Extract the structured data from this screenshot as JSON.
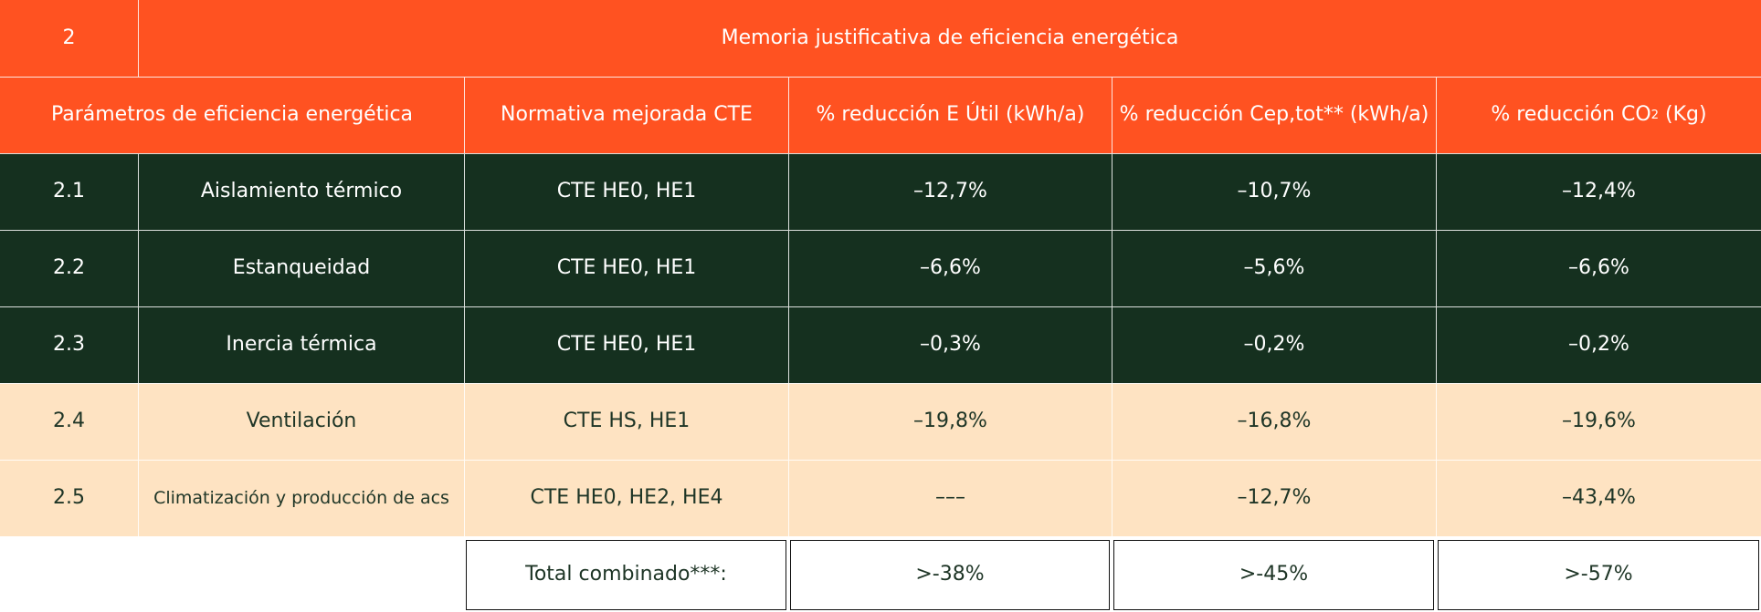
{
  "section": {
    "number": "2",
    "title": "Memoria justificativa de eficiencia energética"
  },
  "headers": {
    "parametros": "Parámetros de eficiencia energética",
    "normativa": "Normativa mejorada CTE",
    "util": "% reducción E Útil (kWh/a)",
    "cep": "% reducción Cep,tot** (kWh/a)",
    "co2_prefix": "% reducción CO",
    "co2_sub": "2",
    "co2_suffix": " (Kg)"
  },
  "rows": [
    {
      "id": "2.1",
      "name": "Aislamiento térmico",
      "normativa": "CTE HE0, HE1",
      "util": "–12,7%",
      "cep": "–10,7%",
      "co2": "–12,4%"
    },
    {
      "id": "2.2",
      "name": "Estanqueidad",
      "normativa": "CTE HE0, HE1",
      "util": "–6,6%",
      "cep": "–5,6%",
      "co2": "–6,6%"
    },
    {
      "id": "2.3",
      "name": "Inercia térmica",
      "normativa": "CTE HE0, HE1",
      "util": "–0,3%",
      "cep": "–0,2%",
      "co2": "–0,2%"
    },
    {
      "id": "2.4",
      "name": "Ventilación",
      "normativa": "CTE HS, HE1",
      "util": "–19,8%",
      "cep": "–16,8%",
      "co2": "–19,6%"
    },
    {
      "id": "2.5",
      "name": "Climatización y producción de acs",
      "normativa": "CTE HE0, HE2, HE4",
      "util": "–––",
      "cep": "–12,7%",
      "co2": "–43,4%"
    }
  ],
  "total": {
    "label": "Total combinado***:",
    "util": ">-38%",
    "cep": ">-45%",
    "co2": ">-57%"
  },
  "colors": {
    "orange": "#ff5221",
    "dark_green": "#15301f",
    "peach": "#fee3c2"
  }
}
